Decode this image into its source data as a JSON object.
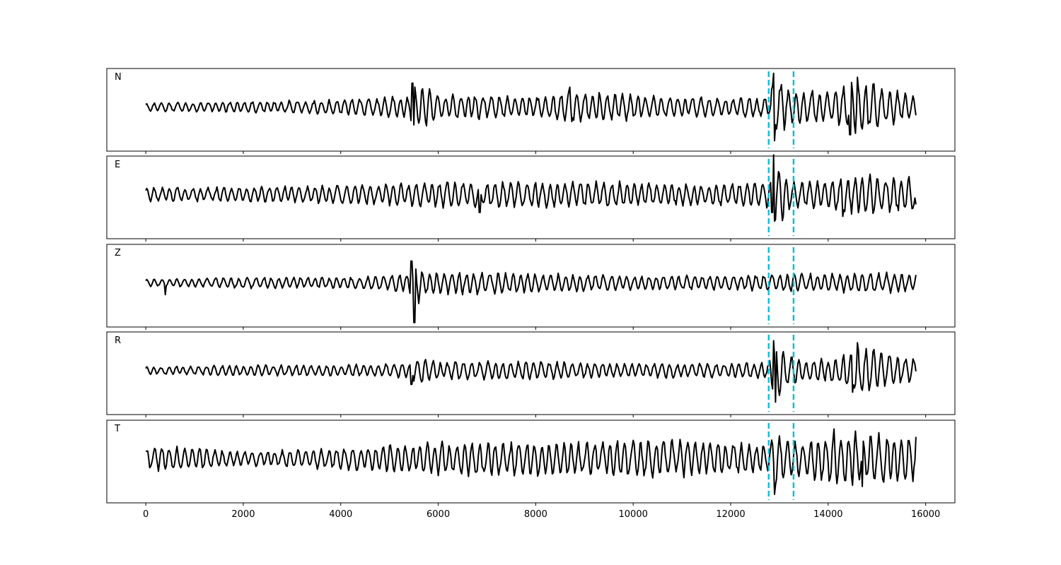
{
  "chart_data": {
    "type": "line",
    "title": "",
    "xlabel": "",
    "ylabel": "",
    "xlim": [
      -800,
      16600
    ],
    "ylim": [
      -1,
      1
    ],
    "x_ticks": [
      0,
      2000,
      4000,
      6000,
      8000,
      10000,
      12000,
      14000,
      16000
    ],
    "x_tick_labels": [
      "0",
      "2000",
      "4000",
      "6000",
      "8000",
      "10000",
      "12000",
      "14000",
      "16000"
    ],
    "samples": {
      "start": 0,
      "end": 15800
    },
    "picks": [
      {
        "x": 12780,
        "color": "#17becf",
        "style": "dashed"
      },
      {
        "x": 13290,
        "color": "#17becf",
        "style": "dashed"
      }
    ],
    "series": [
      {
        "name": "N",
        "description_note": "",
        "envelope": [
          [
            0,
            0.12
          ],
          [
            2000,
            0.15
          ],
          [
            4000,
            0.2
          ],
          [
            5400,
            0.3
          ],
          [
            5500,
            0.7
          ],
          [
            6000,
            0.35
          ],
          [
            7000,
            0.32
          ],
          [
            8000,
            0.3
          ],
          [
            8700,
            0.45
          ],
          [
            10000,
            0.35
          ],
          [
            12000,
            0.25
          ],
          [
            12780,
            0.3
          ],
          [
            12900,
            0.9
          ],
          [
            13300,
            0.45
          ],
          [
            14000,
            0.45
          ],
          [
            14600,
            0.75
          ],
          [
            15800,
            0.3
          ]
        ],
        "spikes": [
          [
            12900,
            -0.85
          ],
          [
            12880,
            0.85
          ],
          [
            14600,
            0.75
          ],
          [
            14450,
            -0.7
          ],
          [
            5500,
            -0.45
          ],
          [
            5470,
            0.6
          ],
          [
            8700,
            0.5
          ]
        ]
      },
      {
        "name": "E",
        "description_note": "",
        "envelope": [
          [
            0,
            0.2
          ],
          [
            2000,
            0.2
          ],
          [
            4000,
            0.25
          ],
          [
            6000,
            0.35
          ],
          [
            7000,
            0.35
          ],
          [
            8000,
            0.35
          ],
          [
            10000,
            0.35
          ],
          [
            11000,
            0.3
          ],
          [
            12000,
            0.3
          ],
          [
            12780,
            0.35
          ],
          [
            12900,
            0.9
          ],
          [
            13300,
            0.35
          ],
          [
            14000,
            0.4
          ],
          [
            14700,
            0.55
          ],
          [
            15800,
            0.45
          ]
        ],
        "spikes": [
          [
            12880,
            1.0
          ],
          [
            12850,
            -0.45
          ],
          [
            14300,
            -0.55
          ],
          [
            15800,
            -0.25
          ],
          [
            6850,
            -0.45
          ]
        ]
      },
      {
        "name": "Z",
        "description_note": "",
        "envelope": [
          [
            0,
            0.1
          ],
          [
            2000,
            0.15
          ],
          [
            4000,
            0.15
          ],
          [
            5000,
            0.2
          ],
          [
            5400,
            0.3
          ],
          [
            5500,
            0.9
          ],
          [
            5700,
            0.3
          ],
          [
            6500,
            0.3
          ],
          [
            7000,
            0.3
          ],
          [
            8000,
            0.25
          ],
          [
            9000,
            0.25
          ],
          [
            10000,
            0.2
          ],
          [
            12000,
            0.2
          ],
          [
            13000,
            0.25
          ],
          [
            14000,
            0.25
          ],
          [
            14700,
            0.3
          ],
          [
            15800,
            0.25
          ]
        ],
        "spikes": [
          [
            5450,
            0.55
          ],
          [
            5510,
            -1.0
          ],
          [
            400,
            -0.3
          ],
          [
            6800,
            -0.3
          ],
          [
            14700,
            0.2
          ]
        ]
      },
      {
        "name": "R",
        "description_note": "",
        "envelope": [
          [
            0,
            0.1
          ],
          [
            2000,
            0.15
          ],
          [
            4000,
            0.15
          ],
          [
            5400,
            0.2
          ],
          [
            5600,
            0.35
          ],
          [
            6000,
            0.25
          ],
          [
            8000,
            0.25
          ],
          [
            10000,
            0.2
          ],
          [
            12000,
            0.2
          ],
          [
            12780,
            0.25
          ],
          [
            12900,
            0.8
          ],
          [
            13300,
            0.35
          ],
          [
            14000,
            0.3
          ],
          [
            14600,
            0.7
          ],
          [
            15800,
            0.3
          ]
        ],
        "spikes": [
          [
            12880,
            0.75
          ],
          [
            12920,
            -0.8
          ],
          [
            14600,
            0.7
          ],
          [
            14500,
            -0.55
          ],
          [
            5450,
            -0.35
          ]
        ]
      },
      {
        "name": "T",
        "description_note": "",
        "envelope": [
          [
            0,
            0.35
          ],
          [
            1000,
            0.3
          ],
          [
            2000,
            0.2
          ],
          [
            4000,
            0.3
          ],
          [
            6000,
            0.45
          ],
          [
            7000,
            0.5
          ],
          [
            8000,
            0.45
          ],
          [
            9000,
            0.45
          ],
          [
            10000,
            0.5
          ],
          [
            11000,
            0.5
          ],
          [
            12000,
            0.45
          ],
          [
            12780,
            0.4
          ],
          [
            12900,
            0.85
          ],
          [
            13300,
            0.45
          ],
          [
            14100,
            0.7
          ],
          [
            14700,
            0.7
          ],
          [
            15800,
            0.65
          ]
        ],
        "spikes": [
          [
            12900,
            -0.9
          ],
          [
            14120,
            0.75
          ],
          [
            14350,
            -0.55
          ],
          [
            14700,
            -0.7
          ],
          [
            15800,
            0.55
          ]
        ]
      }
    ],
    "grid": false
  }
}
